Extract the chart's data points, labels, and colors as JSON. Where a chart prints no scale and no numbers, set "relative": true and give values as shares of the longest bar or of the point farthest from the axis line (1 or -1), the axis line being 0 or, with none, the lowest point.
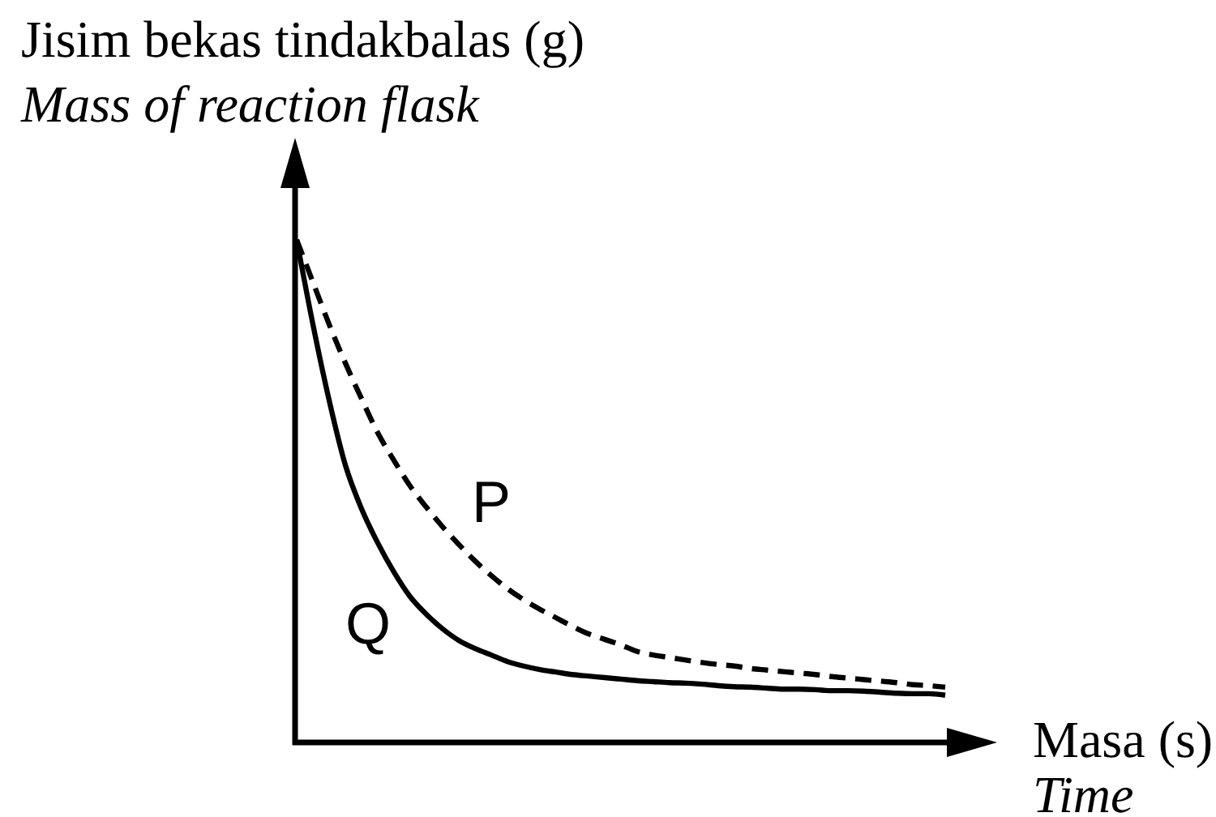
{
  "chart_data": {
    "type": "line",
    "relative": true,
    "ylabel": "Jisim bekas tindakbalas (g)\nMass of reaction flask",
    "xlabel": "Masa (s)\nTime",
    "categories": [
      null,
      null,
      null,
      null,
      null,
      null,
      null,
      null,
      null,
      null,
      null,
      null,
      null,
      null,
      null,
      null,
      null,
      null,
      null,
      null,
      null,
      null,
      null,
      null,
      null,
      null,
      null,
      null,
      null,
      null,
      null,
      null,
      null,
      null,
      null,
      null,
      null,
      null,
      null,
      null,
      null
    ],
    "series": [
      {
        "name": "P",
        "color": "#000000",
        "line_style": "dashed",
        "values": [
          1.0,
          0.916,
          0.832,
          0.755,
          0.684,
          0.616,
          0.561,
          0.51,
          0.468,
          0.429,
          0.394,
          0.361,
          0.332,
          0.306,
          0.284,
          0.265,
          0.248,
          0.231,
          0.216,
          0.205,
          0.194,
          0.181,
          0.174,
          0.169,
          0.164,
          0.159,
          0.155,
          0.152,
          0.147,
          0.144,
          0.141,
          0.138,
          0.135,
          0.131,
          0.128,
          0.125,
          0.122,
          0.119,
          0.115,
          0.113,
          0.11
        ]
      },
      {
        "name": "Q",
        "color": "#000000",
        "line_style": "solid",
        "values": [
          1.0,
          0.832,
          0.681,
          0.552,
          0.465,
          0.397,
          0.339,
          0.29,
          0.255,
          0.226,
          0.203,
          0.187,
          0.174,
          0.161,
          0.152,
          0.145,
          0.14,
          0.135,
          0.132,
          0.129,
          0.126,
          0.123,
          0.121,
          0.119,
          0.118,
          0.116,
          0.113,
          0.111,
          0.11,
          0.108,
          0.106,
          0.106,
          0.105,
          0.103,
          0.103,
          0.102,
          0.1,
          0.098,
          0.097,
          0.097,
          0.094
        ]
      }
    ]
  }
}
